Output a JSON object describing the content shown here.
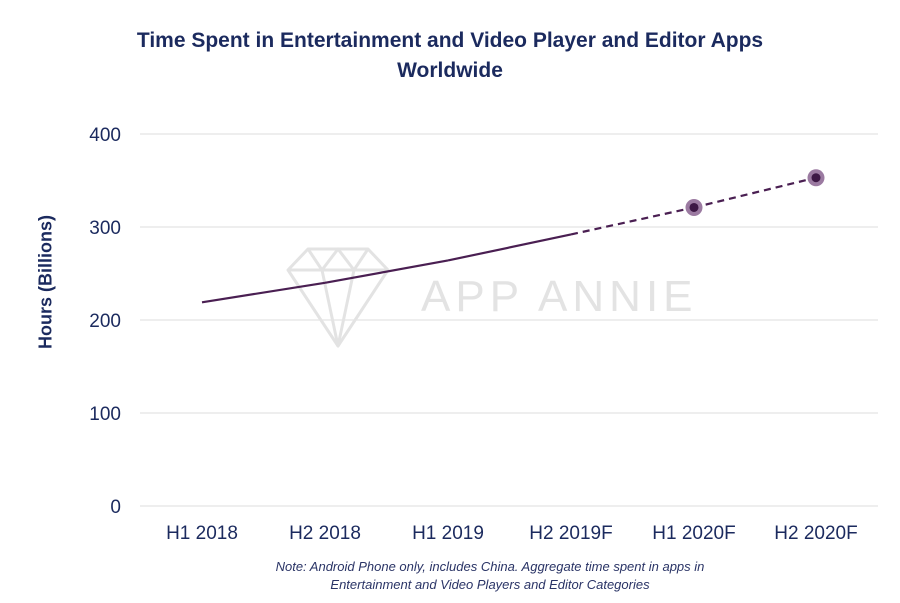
{
  "chart_data": {
    "type": "line",
    "title": "Time Spent in Entertainment and Video Player and Editor Apps",
    "subtitle": "Worldwide",
    "ylabel": "Hours (Billions)",
    "xlabel": "",
    "categories": [
      "H1 2018",
      "H2 2018",
      "H1 2019",
      "H2 2019F",
      "H1 2020F",
      "H2 2020F"
    ],
    "yticks": [
      0,
      100,
      200,
      300,
      400
    ],
    "ylim": [
      0,
      400
    ],
    "grid": true,
    "series": [
      {
        "name": "Time spent",
        "values": [
          219,
          240,
          264,
          292,
          321,
          353
        ],
        "forecast_from_index": 3,
        "markers_at": [
          4,
          5
        ]
      }
    ],
    "colors": {
      "line": "#4a1f52",
      "marker_outer": "#9b7aa1",
      "marker_inner": "#3d1845",
      "grid": "#e4e4e4",
      "text": "#1b2a5e"
    },
    "watermark": "APP ANNIE",
    "note_line1": "Note: Android Phone only, includes China. Aggregate time spent in apps in",
    "note_line2": "Entertainment and Video Players and Editor Categories"
  }
}
